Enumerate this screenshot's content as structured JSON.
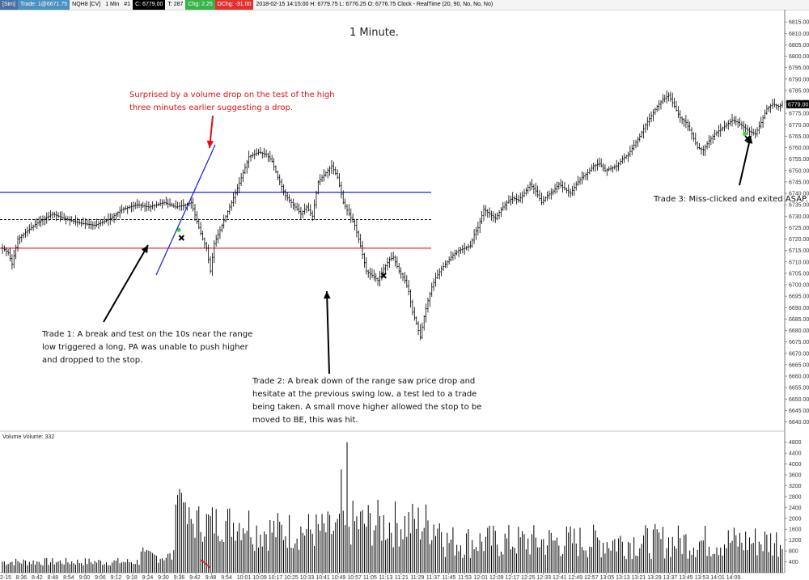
{
  "toolbar": {
    "tag": "[Sim]",
    "trade": "Trade: 1@6671.75",
    "symbol": "NQH8 [CV]",
    "interval": "1 Min",
    "bars": "#1",
    "close": "C: 6779.00",
    "ticks": "T: 287",
    "chg": "Chg: 2.25",
    "dchg": "DChg: -31.00",
    "info": "2018-02-15 14:15:00  H: 6779.75  L: 6776.25  O: 6776.75  Clock - RealTime   (20, 90, No, No, No)"
  },
  "colors": {
    "background": "#ffffff",
    "bars": "#000000",
    "high_line": "#1f2bd6",
    "low_line": "#e01010",
    "mid_line": "#000000",
    "annotation_red": "#e01010",
    "entry_marker": "#33dd33",
    "exit_marker": "#000000"
  },
  "chart_data": [
    {
      "type": "ohlc",
      "title": "1 Minute.",
      "ylim": [
        6637,
        6820
      ],
      "price_ticks": [
        "6815.00",
        "6810.00",
        "6805.00",
        "6800.00",
        "6795.00",
        "6790.00",
        "6785.00",
        "6780.00",
        "6775.00",
        "6770.00",
        "6765.00",
        "6760.00",
        "6755.00",
        "6750.00",
        "6745.00",
        "6740.00",
        "6735.00",
        "6730.00",
        "6725.00",
        "6720.00",
        "6715.00",
        "6710.00",
        "6705.00",
        "6700.00",
        "6695.00",
        "6690.00",
        "6685.00",
        "6680.00",
        "6675.00",
        "6670.00",
        "6665.00",
        "6660.00",
        "6655.00",
        "6650.00",
        "6645.00",
        "6640.00"
      ],
      "current_price": "6779.00",
      "range_high": 6740.5,
      "range_mid": 6728.5,
      "range_low": 6716,
      "price_path": [
        [
          0,
          6716
        ],
        [
          3,
          6714
        ],
        [
          5,
          6709
        ],
        [
          8,
          6720
        ],
        [
          12,
          6723
        ],
        [
          18,
          6727
        ],
        [
          26,
          6731
        ],
        [
          32,
          6729
        ],
        [
          40,
          6727
        ],
        [
          48,
          6726
        ],
        [
          56,
          6729
        ],
        [
          62,
          6733
        ],
        [
          70,
          6735
        ],
        [
          76,
          6734
        ],
        [
          84,
          6736
        ],
        [
          90,
          6734
        ],
        [
          95,
          6735
        ],
        [
          98,
          6736
        ],
        [
          102,
          6725
        ],
        [
          104,
          6720
        ],
        [
          106,
          6716
        ],
        [
          108,
          6706
        ],
        [
          110,
          6718
        ],
        [
          113,
          6724
        ],
        [
          117,
          6732
        ],
        [
          121,
          6740
        ],
        [
          125,
          6749
        ],
        [
          128,
          6756
        ],
        [
          133,
          6758
        ],
        [
          137,
          6757
        ],
        [
          140,
          6754
        ],
        [
          143,
          6747
        ],
        [
          147,
          6739
        ],
        [
          151,
          6735
        ],
        [
          155,
          6731
        ],
        [
          158,
          6734
        ],
        [
          161,
          6730
        ],
        [
          164,
          6745
        ],
        [
          168,
          6749
        ],
        [
          171,
          6752
        ],
        [
          174,
          6747
        ],
        [
          177,
          6736
        ],
        [
          180,
          6731
        ],
        [
          183,
          6726
        ],
        [
          186,
          6717
        ],
        [
          189,
          6706
        ],
        [
          192,
          6704
        ],
        [
          195,
          6702
        ],
        [
          198,
          6707
        ],
        [
          201,
          6711
        ],
        [
          203,
          6712
        ],
        [
          206,
          6706
        ],
        [
          209,
          6702
        ],
        [
          211,
          6697
        ],
        [
          213,
          6688
        ],
        [
          215,
          6683
        ],
        [
          217,
          6677
        ],
        [
          219,
          6686
        ],
        [
          221,
          6693
        ],
        [
          223,
          6699
        ],
        [
          225,
          6703
        ],
        [
          228,
          6707
        ],
        [
          231,
          6710
        ],
        [
          234,
          6713
        ],
        [
          237,
          6715
        ],
        [
          240,
          6716
        ],
        [
          243,
          6717
        ],
        [
          245,
          6722
        ],
        [
          247,
          6725
        ],
        [
          250,
          6733
        ],
        [
          253,
          6731
        ],
        [
          256,
          6729
        ],
        [
          259,
          6733
        ],
        [
          262,
          6736
        ],
        [
          265,
          6738
        ],
        [
          268,
          6737
        ],
        [
          271,
          6740
        ],
        [
          274,
          6744
        ],
        [
          277,
          6741
        ],
        [
          280,
          6736
        ],
        [
          283,
          6739
        ],
        [
          286,
          6741
        ],
        [
          289,
          6744
        ],
        [
          292,
          6742
        ],
        [
          295,
          6740
        ],
        [
          298,
          6744
        ],
        [
          301,
          6747
        ],
        [
          304,
          6749
        ],
        [
          307,
          6752
        ],
        [
          310,
          6753
        ],
        [
          313,
          6750
        ],
        [
          316,
          6751
        ],
        [
          319,
          6752
        ],
        [
          322,
          6755
        ],
        [
          325,
          6757
        ],
        [
          328,
          6761
        ],
        [
          331,
          6765
        ],
        [
          334,
          6770
        ],
        [
          337,
          6774
        ],
        [
          340,
          6778
        ],
        [
          343,
          6781
        ],
        [
          346,
          6783
        ],
        [
          349,
          6778
        ],
        [
          352,
          6773
        ],
        [
          355,
          6771
        ],
        [
          358,
          6766
        ],
        [
          361,
          6760
        ],
        [
          364,
          6759
        ],
        [
          367,
          6763
        ],
        [
          370,
          6766
        ],
        [
          373,
          6768
        ],
        [
          376,
          6770
        ],
        [
          379,
          6772
        ],
        [
          382,
          6771
        ],
        [
          385,
          6769
        ],
        [
          388,
          6767
        ],
        [
          391,
          6766
        ],
        [
          394,
          6771
        ],
        [
          397,
          6777
        ],
        [
          400,
          6779
        ],
        [
          403,
          6778
        ],
        [
          405,
          6779
        ]
      ],
      "time_ticks": [
        "2-15",
        "8:36",
        "8:42",
        "8:48",
        "8:54",
        "9:00",
        "9:06",
        "9:12",
        "9:18",
        "9:24",
        "9:30",
        "9:36",
        "9:42",
        "9:48",
        "9:54",
        "10:01",
        "10:09",
        "10:17",
        "10:25",
        "10:33",
        "10:41",
        "10:49",
        "10:57",
        "11:05",
        "11:13",
        "11:21",
        "11:29",
        "11:37",
        "11:45",
        "11:53",
        "12:01",
        "12:09",
        "12:17",
        "12:25",
        "12:33",
        "12:41",
        "12:49",
        "12:57",
        "13:05",
        "13:13",
        "13:21",
        "13:29",
        "13:37",
        "13:45",
        "13:53",
        "14:01",
        "14:09"
      ],
      "trades": [
        {
          "name": "trade-1",
          "entry_bar": 92,
          "entry_price": 6724,
          "exit_bar": 93,
          "exit_price": 6720.5
        },
        {
          "name": "trade-2",
          "entry_bar": 198,
          "exit_bar": 198,
          "exit_price": 6704
        },
        {
          "name": "trade-3",
          "entry_bar": 386,
          "entry_price": 6766,
          "exit_bar": 387,
          "exit_price": 6764
        }
      ],
      "annotations": {
        "surprise": [
          "Surprised by a volume drop on the test of the high",
          "three minutes earlier suggesting a drop."
        ],
        "trade1": [
          "Trade 1:  A break and test on the 10s near the range",
          "low triggered a long, PA was unable to push higher",
          "and dropped to the stop."
        ],
        "trade2": [
          "Trade 2:  A break down of the range saw price drop and",
          "hesitate at the previous swing low, a test led to a trade",
          "being taken.  A small move higher allowed the stop to be",
          "moved to BE, this was hit."
        ],
        "trade3": [
          "Trade 3:  Miss-clicked and exited ASAP."
        ]
      }
    },
    {
      "type": "bar",
      "title": "Volume  Volume: 332",
      "ylim": [
        0,
        5000
      ],
      "y_ticks": [
        "4800",
        "4400",
        "4000",
        "3600",
        "3200",
        "2800",
        "2400",
        "2000",
        "1600",
        "1200",
        "800",
        "400"
      ]
    }
  ]
}
